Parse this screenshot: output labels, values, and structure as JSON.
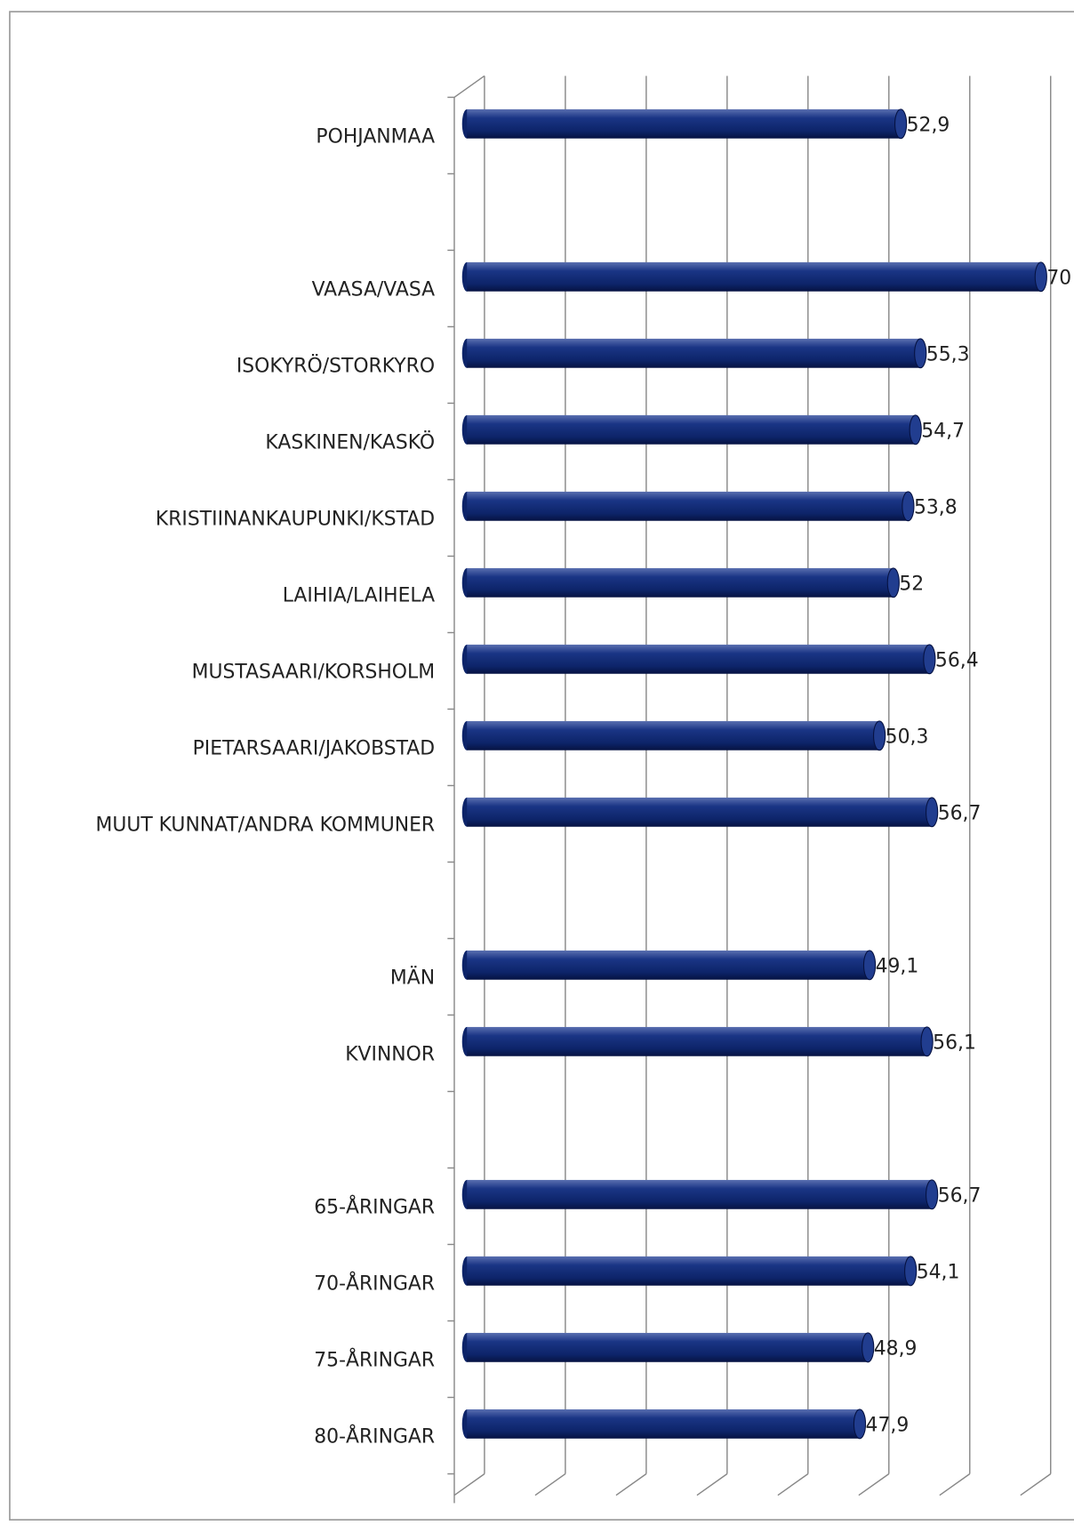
{
  "chart_data": {
    "type": "bar",
    "orientation": "horizontal",
    "color": "#0d2469",
    "categories": [
      "POHJANMAA",
      null,
      "VAASA/VASA",
      "ISOKYRÖ/STORKYRO",
      "KASKINEN/KASKÖ",
      "KRISTIINANKAUPUNKI/KSTAD",
      "LAIHIA/LAIHELA",
      "MUSTASAARI/KORSHOLM",
      "PIETARSAARI/JAKOBSTAD",
      "MUUT KUNNAT/ANDRA KOMMUNER",
      null,
      "MÄN",
      "KVINNOR",
      null,
      "65-ÅRINGAR",
      "70-ÅRINGAR",
      "75-ÅRINGAR",
      "80-ÅRINGAR"
    ],
    "values": [
      52.9,
      null,
      70,
      55.3,
      54.7,
      53.8,
      52,
      56.4,
      50.3,
      56.7,
      null,
      49.1,
      56.1,
      null,
      56.7,
      54.1,
      48.9,
      47.9
    ],
    "value_labels": [
      "52,9",
      null,
      "70",
      "55,3",
      "54,7",
      "53,8",
      "52",
      "56,4",
      "50,3",
      "56,7",
      null,
      "49,1",
      "56,1",
      null,
      "56,7",
      "54,1",
      "48,9",
      "47,9"
    ],
    "xlim": [
      0,
      70
    ],
    "xticks": [
      0,
      10,
      20,
      30,
      40,
      50,
      60,
      70
    ],
    "grid": true
  }
}
